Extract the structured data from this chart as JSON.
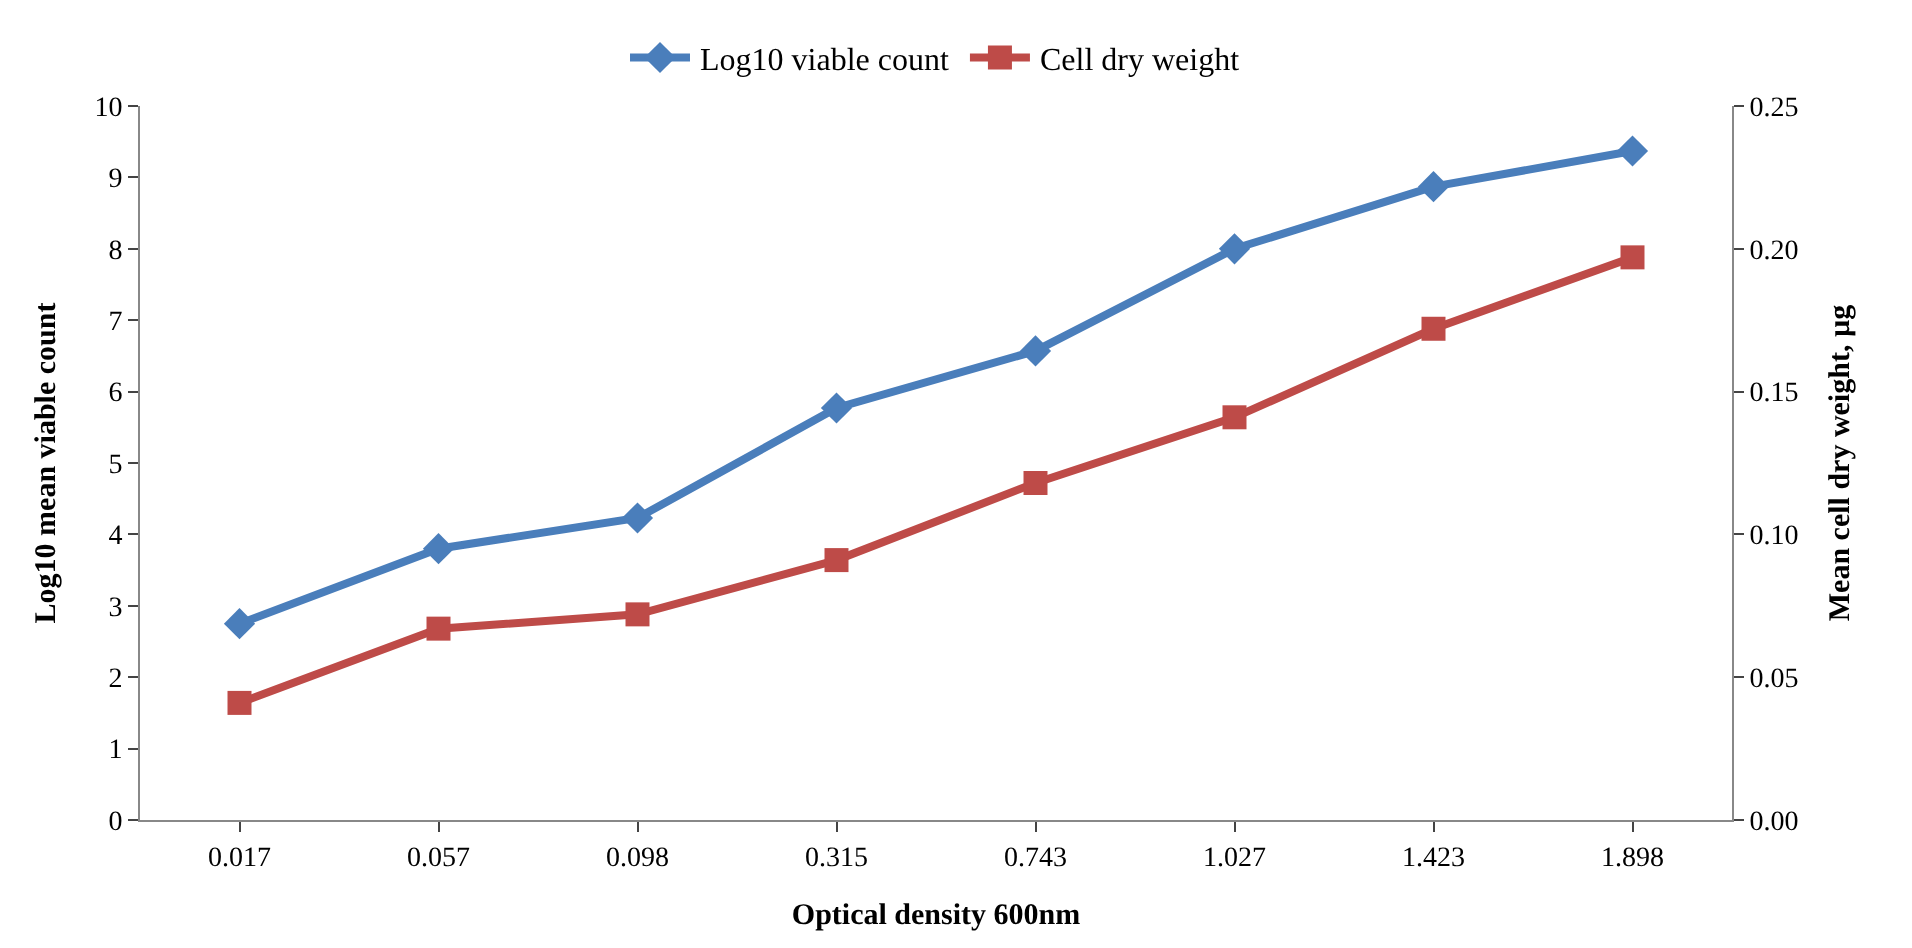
{
  "chart_data": {
    "type": "line",
    "xlabel": "Optical density 600nm",
    "ylabel": "Log10 mean viable count",
    "y2label": "Mean cell dry weight, µg",
    "categories": [
      "0.017",
      "0.057",
      "0.098",
      "0.315",
      "0.743",
      "1.027",
      "1.423",
      "1.898"
    ],
    "series": [
      {
        "name": "Log10 viable count",
        "color": "#4a7ebb",
        "marker": "diamond",
        "values": [
          2.75,
          3.8,
          4.23,
          5.77,
          6.57,
          8.0,
          8.87,
          9.37
        ]
      },
      {
        "name": "Cell dry weight",
        "color": "#be4b48",
        "marker": "square",
        "axis": "y2",
        "values": [
          0.041,
          0.067,
          0.072,
          0.091,
          0.118,
          0.141,
          0.172,
          0.197
        ]
      }
    ],
    "ylim": [
      0,
      10
    ],
    "yticks": [
      0,
      1,
      2,
      3,
      4,
      5,
      6,
      7,
      8,
      9,
      10
    ],
    "y2lim": [
      0,
      0.25
    ],
    "y2ticks": [
      {
        "value": 0,
        "label": "0.00"
      },
      {
        "value": 0.05,
        "label": "0.05"
      },
      {
        "value": 0.1,
        "label": "0.10"
      },
      {
        "value": 0.15,
        "label": "0.15"
      },
      {
        "value": 0.2,
        "label": "0.20"
      },
      {
        "value": 0.25,
        "label": "0.25"
      }
    ],
    "legend": "top",
    "line_style": "solid"
  }
}
